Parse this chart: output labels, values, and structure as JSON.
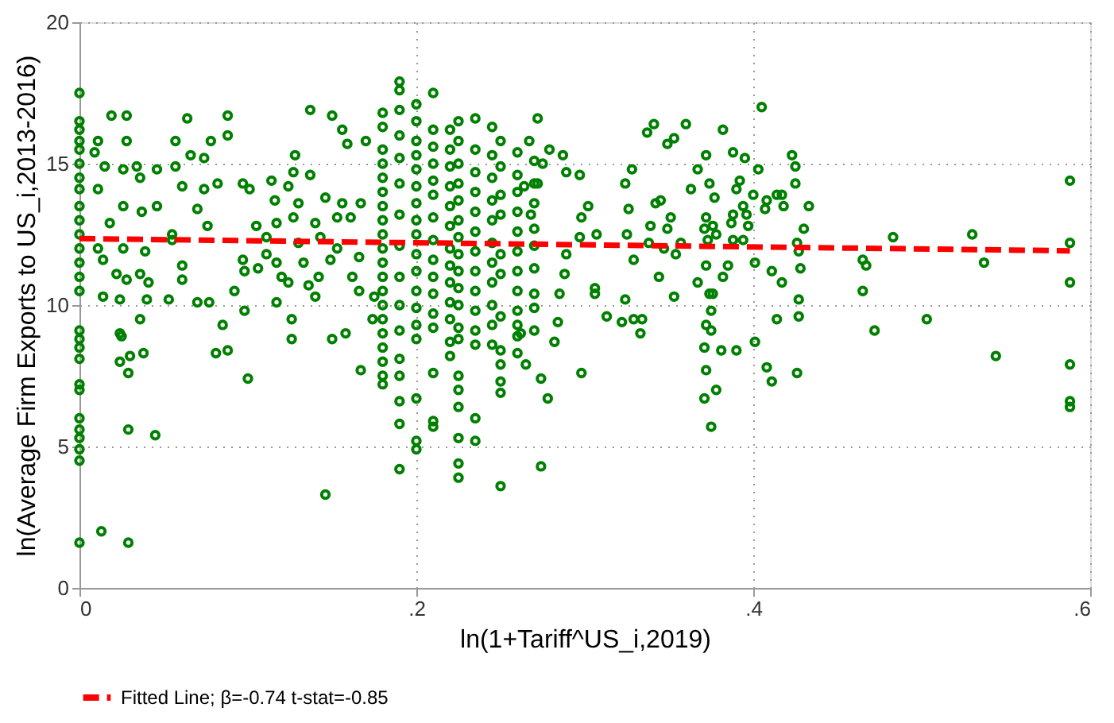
{
  "chart_data": {
    "type": "scatter",
    "xlabel": "ln(1+Tariff^US_i,2019)",
    "ylabel": "ln(Average Firm Exports to US_i,2013-2016)",
    "xlim": [
      0,
      0.6
    ],
    "ylim": [
      0,
      20
    ],
    "xticks": [
      0,
      {
        "value": 0.2,
        "label": ".2"
      },
      {
        "value": 0.4,
        "label": ".4"
      },
      {
        "value": 0.6,
        "label": ".6"
      }
    ],
    "yticks": [
      0,
      5,
      10,
      15,
      20
    ],
    "grid": true,
    "legend": "bottom",
    "marker": "circle",
    "series": [
      {
        "color": "#008000",
        "x": [
          0,
          0,
          0,
          0,
          0,
          0,
          0,
          0,
          0,
          0,
          0,
          0,
          0,
          0,
          0,
          0,
          0,
          0,
          0,
          0,
          0,
          0,
          0,
          0,
          0,
          0,
          0
        ],
        "values": [
          17.5,
          16.5,
          16.2,
          15.8,
          15.5,
          15,
          14.5,
          14.1,
          13.5,
          13,
          12.5,
          12,
          11.5,
          11,
          10.5,
          9.1,
          8.8,
          8.5,
          8.1,
          7.2,
          7,
          6,
          5.6,
          5.3,
          4.9,
          4.5,
          1.6
        ]
      },
      {
        "color": "#008000",
        "x": [
          0.013,
          0.029,
          0.029,
          0.045,
          0.019,
          0.028,
          0.064,
          0.088,
          0.088,
          0.078,
          0.009,
          0.011,
          0.028,
          0.057,
          0.066,
          0.074,
          0.015,
          0.026,
          0.034,
          0.046,
          0.057,
          0.074,
          0.061,
          0.082,
          0.011,
          0.036,
          0.026,
          0.046,
          0.037,
          0.07,
          0.018,
          0.055,
          0.076,
          0.011,
          0.026,
          0.039,
          0.014,
          0.055,
          0.061,
          0.022,
          0.028,
          0.036,
          0.041,
          0.061,
          0.014,
          0.024,
          0.04,
          0.053,
          0.07,
          0.077,
          0.092,
          0.036,
          0.024,
          0.025,
          0.03,
          0.038,
          0.024,
          0.029,
          0.085,
          0.081,
          0.088,
          0.1,
          0.098,
          0.097
        ],
        "values": [
          2,
          1.6,
          5.6,
          5.4,
          16.7,
          16.7,
          16.6,
          16.7,
          16,
          15.8,
          15.4,
          15.8,
          15.8,
          15.8,
          15.3,
          15.2,
          14.9,
          14.8,
          14.9,
          14.8,
          14.9,
          14.1,
          14.2,
          14.3,
          14.1,
          14.5,
          13.5,
          13.5,
          13.3,
          13.4,
          12.9,
          12.5,
          12.8,
          12,
          12,
          11.9,
          11.6,
          12.3,
          11.4,
          11.1,
          10.9,
          11.1,
          10.8,
          10.9,
          10.3,
          10.2,
          10.2,
          10.2,
          10.1,
          10.1,
          10.5,
          9.5,
          9,
          8.9,
          8.2,
          8.3,
          8,
          7.6,
          9.3,
          8.3,
          8.4,
          7.4,
          9.8,
          11.6
        ]
      },
      {
        "color": "#008000",
        "x": [
          0.137,
          0.15,
          0.156,
          0.159,
          0.17,
          0.128,
          0.127,
          0.137,
          0.114,
          0.124,
          0.097,
          0.101,
          0.116,
          0.13,
          0.146,
          0.156,
          0.167,
          0.117,
          0.105,
          0.127,
          0.14,
          0.153,
          0.161,
          0.111,
          0.13,
          0.143,
          0.153,
          0.166,
          0.111,
          0.117,
          0.133,
          0.149,
          0.098,
          0.106,
          0.12,
          0.142,
          0.162,
          0.124,
          0.136,
          0.117,
          0.14,
          0.166,
          0.175,
          0.126,
          0.174,
          0.126,
          0.15,
          0.158,
          0.167,
          0.146
        ],
        "values": [
          16.9,
          16.7,
          16.2,
          15.7,
          15.8,
          15.3,
          14.7,
          14.6,
          14.4,
          14.2,
          14.3,
          14.1,
          13.7,
          13.6,
          13.8,
          13.6,
          13.6,
          12.9,
          12.8,
          13.1,
          12.9,
          13.1,
          13.1,
          12.4,
          12.2,
          12.4,
          12,
          11.7,
          11.8,
          11.5,
          11.5,
          11.6,
          11.2,
          11.3,
          11,
          11,
          11,
          10.8,
          10.7,
          10.1,
          10.3,
          10.5,
          10.3,
          9.5,
          9.5,
          8.8,
          8.8,
          9,
          7.7,
          3.3
        ]
      },
      {
        "color": "#008000",
        "x": [
          0.18,
          0.18,
          0.18,
          0.18,
          0.18,
          0.18,
          0.18,
          0.18,
          0.18,
          0.18,
          0.18,
          0.18,
          0.18,
          0.18,
          0.18,
          0.18,
          0.18,
          0.18,
          0.18,
          0.18
        ],
        "values": [
          16.8,
          16.3,
          15.5,
          15,
          14.5,
          14,
          13.5,
          13,
          12.5,
          12,
          11.5,
          11,
          10.5,
          10,
          9.5,
          9,
          8.5,
          8,
          7.5,
          7.2
        ]
      },
      {
        "color": "#008000",
        "x": [
          0.19,
          0.19,
          0.19,
          0.19,
          0.19,
          0.19,
          0.19,
          0.19,
          0.19,
          0.19,
          0.19,
          0.19,
          0.19,
          0.19,
          0.19,
          0.19
        ],
        "values": [
          17.9,
          17.6,
          16.9,
          16,
          15.2,
          14.3,
          13.2,
          12.1,
          11,
          10,
          9.1,
          8.1,
          7.5,
          6.6,
          5.8,
          4.2
        ]
      },
      {
        "color": "#008000",
        "x": [
          0.2,
          0.2,
          0.2,
          0.2,
          0.2,
          0.2,
          0.2,
          0.2,
          0.2,
          0.2,
          0.2,
          0.2,
          0.2,
          0.2,
          0.2,
          0.2,
          0.2,
          0.2
        ],
        "values": [
          17.1,
          16.5,
          15.8,
          15.3,
          14.8,
          14.2,
          13.6,
          13,
          12.5,
          11.8,
          11.2,
          10.5,
          9.9,
          9.3,
          8.8,
          6.7,
          5.2,
          4.9
        ]
      },
      {
        "color": "#008000",
        "x": [
          0.21,
          0.21,
          0.21,
          0.21,
          0.21,
          0.21,
          0.21,
          0.21,
          0.21,
          0.21,
          0.21,
          0.21,
          0.21,
          0.21,
          0.21,
          0.21
        ],
        "values": [
          17.5,
          16.2,
          15.6,
          15,
          14.4,
          13.9,
          13.1,
          12.3,
          11.6,
          11,
          10.4,
          9.7,
          9.2,
          7.6,
          5.9,
          5.7
        ]
      },
      {
        "color": "#008000",
        "x": [
          0.22,
          0.22,
          0.22,
          0.22,
          0.22,
          0.22,
          0.22,
          0.22,
          0.22,
          0.22,
          0.22,
          0.22,
          0.22
        ],
        "values": [
          16.2,
          15.5,
          14.9,
          14.2,
          13.5,
          12.8,
          12,
          11.4,
          10.8,
          10.1,
          9.5,
          8.7,
          8.2
        ]
      },
      {
        "color": "#008000",
        "x": [
          0.225,
          0.225,
          0.225,
          0.225,
          0.225,
          0.225,
          0.225,
          0.225,
          0.225,
          0.225,
          0.225,
          0.225,
          0.225,
          0.225,
          0.225,
          0.225,
          0.225,
          0.225,
          0.225
        ],
        "values": [
          16.5,
          15.8,
          15,
          14.3,
          13.7,
          13,
          12.4,
          11.8,
          11.2,
          10.6,
          10,
          9.2,
          8.8,
          7.5,
          7,
          6.4,
          5.3,
          4.4,
          3.9
        ]
      },
      {
        "color": "#008000",
        "x": [
          0.235,
          0.235,
          0.235,
          0.235,
          0.235,
          0.235,
          0.235,
          0.235,
          0.235,
          0.235,
          0.235,
          0.235,
          0.235,
          0.235
        ],
        "values": [
          16.6,
          15.5,
          14.7,
          14,
          13.3,
          12.6,
          11.9,
          11.2,
          10.5,
          9.8,
          9.1,
          8.6,
          6,
          5.2
        ]
      },
      {
        "color": "#008000",
        "x": [
          0.245,
          0.245,
          0.245,
          0.245,
          0.245,
          0.245,
          0.245,
          0.245,
          0.245,
          0.245,
          0.245
        ],
        "values": [
          16.3,
          15.3,
          14.5,
          13.7,
          13,
          12.2,
          11.5,
          10.8,
          10,
          9.3,
          8.6
        ]
      },
      {
        "color": "#008000",
        "x": [
          0.25,
          0.25,
          0.25,
          0.25,
          0.25,
          0.25,
          0.25,
          0.25,
          0.25,
          0.25,
          0.25,
          0.25
        ],
        "values": [
          15.8,
          14.9,
          13.9,
          13.2,
          11.8,
          11.1,
          9.6,
          8.4,
          7.9,
          7.3,
          6.9,
          3.6
        ]
      },
      {
        "color": "#008000",
        "x": [
          0.26,
          0.26,
          0.26,
          0.26,
          0.26,
          0.26,
          0.26,
          0.26,
          0.26,
          0.26,
          0.26,
          0.26
        ],
        "values": [
          15.4,
          14.6,
          14,
          13.3,
          12.6,
          11.9,
          11.2,
          10.5,
          9.8,
          9.3,
          8.9,
          8.3
        ]
      },
      {
        "color": "#008000",
        "x": [
          0.27,
          0.27,
          0.27,
          0.27,
          0.27,
          0.27,
          0.27,
          0.27,
          0.27
        ],
        "values": [
          15.1,
          14.3,
          13.6,
          12.7,
          12.1,
          11.3,
          10.4,
          9.9,
          9.1
        ]
      },
      {
        "color": "#008000",
        "x": [
          0.272,
          0.267,
          0.279,
          0.287,
          0.275,
          0.289,
          0.297,
          0.272,
          0.264,
          0.268,
          0.302,
          0.298,
          0.307,
          0.297,
          0.289,
          0.288,
          0.285,
          0.306,
          0.313,
          0.284,
          0.282,
          0.265,
          0.274,
          0.278,
          0.298,
          0.274,
          0.262
        ],
        "values": [
          16.6,
          15.8,
          15.5,
          15.3,
          15,
          14.7,
          14.6,
          14.3,
          14.2,
          13.2,
          13.5,
          13.1,
          12.5,
          12.4,
          11.8,
          11.1,
          10.4,
          10.6,
          9.6,
          9.4,
          8.7,
          7.9,
          7.4,
          6.7,
          7.6,
          4.3,
          9
        ]
      },
      {
        "color": "#008000",
        "x": [
          0.337,
          0.341,
          0.349,
          0.353,
          0.36,
          0.328,
          0.324,
          0.326,
          0.342,
          0.345,
          0.339,
          0.351,
          0.349,
          0.325,
          0.338,
          0.329,
          0.347,
          0.354,
          0.357,
          0.344,
          0.353,
          0.324,
          0.306,
          0.313,
          0.322,
          0.329,
          0.334,
          0.333
        ],
        "values": [
          16.1,
          16.4,
          15.7,
          15.9,
          16.4,
          14.8,
          14.3,
          13.4,
          13.6,
          13.7,
          12.8,
          13.1,
          12.7,
          12.5,
          12.2,
          11.6,
          12,
          11.8,
          12.2,
          11,
          10.3,
          10.2,
          10.4,
          null,
          9.4,
          9.5,
          9.5,
          9
        ]
      },
      {
        "color": "#008000",
        "x": [
          0.363,
          0.367,
          0.372,
          0.382,
          0.374,
          0.377,
          0.372,
          0.376,
          0.371,
          0.373,
          0.378,
          0.367,
          0.372,
          0.382,
          0.385,
          0.374,
          0.376,
          0.375,
          0.372,
          0.375,
          0.371,
          0.381,
          0.39,
          0.372,
          0.371,
          0.378,
          0.375
        ],
        "values": [
          14.1,
          14.8,
          15.3,
          16.2,
          14.3,
          13.8,
          13.1,
          12.8,
          12.7,
          12.3,
          12.5,
          10.8,
          11.4,
          11,
          11.4,
          10.4,
          10.4,
          9.8,
          9.3,
          9.1,
          8.5,
          8.4,
          8.4,
          7.7,
          6.7,
          7,
          5.7
        ]
      },
      {
        "color": "#008000",
        "x": [
          0.388,
          0.395,
          0.39,
          0.392,
          0.394,
          0.388,
          0.396,
          0.387,
          0.397,
          0.388,
          0.394,
          0.4,
          0.405,
          0.403,
          0.408,
          0.407,
          0.401,
          0.411,
          0.417,
          0.401,
          0.408,
          0.411,
          0.414,
          0.417,
          0.418,
          0.423,
          0.425,
          0.425,
          0.433,
          0.43,
          0.426,
          0.427,
          0.428,
          0.427,
          0.427,
          0.414,
          0.426
        ],
        "values": [
          15.4,
          15.2,
          14.1,
          14.4,
          13.5,
          13.2,
          13.2,
          12.9,
          12.8,
          12.3,
          12.3,
          13.9,
          17,
          14.8,
          13.7,
          13.4,
          11.5,
          11.2,
          10.8,
          8.7,
          7.8,
          7.3,
          13.9,
          13.9,
          13.5,
          15.3,
          14.9,
          14.3,
          13.5,
          12.7,
          12.2,
          11.9,
          11.3,
          10.2,
          9.6,
          9.5,
          7.6
        ]
      },
      {
        "color": "#008000",
        "x": [
          0.465,
          0.467,
          0.465,
          0.472,
          0.483,
          0.503,
          0.53,
          0.537,
          0.544,
          0.588,
          0.588,
          0.588,
          0.588,
          0.588,
          0.588
        ],
        "values": [
          11.6,
          11.4,
          10.5,
          9.1,
          12.4,
          9.5,
          12.5,
          11.5,
          8.2,
          14.4,
          12.2,
          10.8,
          7.9,
          6.6,
          6.4
        ]
      },
      {
        "type": "line",
        "name": "Fitted Line;  β=-0.74  t-stat=-0.85",
        "color": "#ff0000",
        "line_style": "dashed",
        "marker": "none",
        "x": [
          0,
          0.588
        ],
        "values": [
          12.35,
          11.92
        ]
      }
    ]
  }
}
